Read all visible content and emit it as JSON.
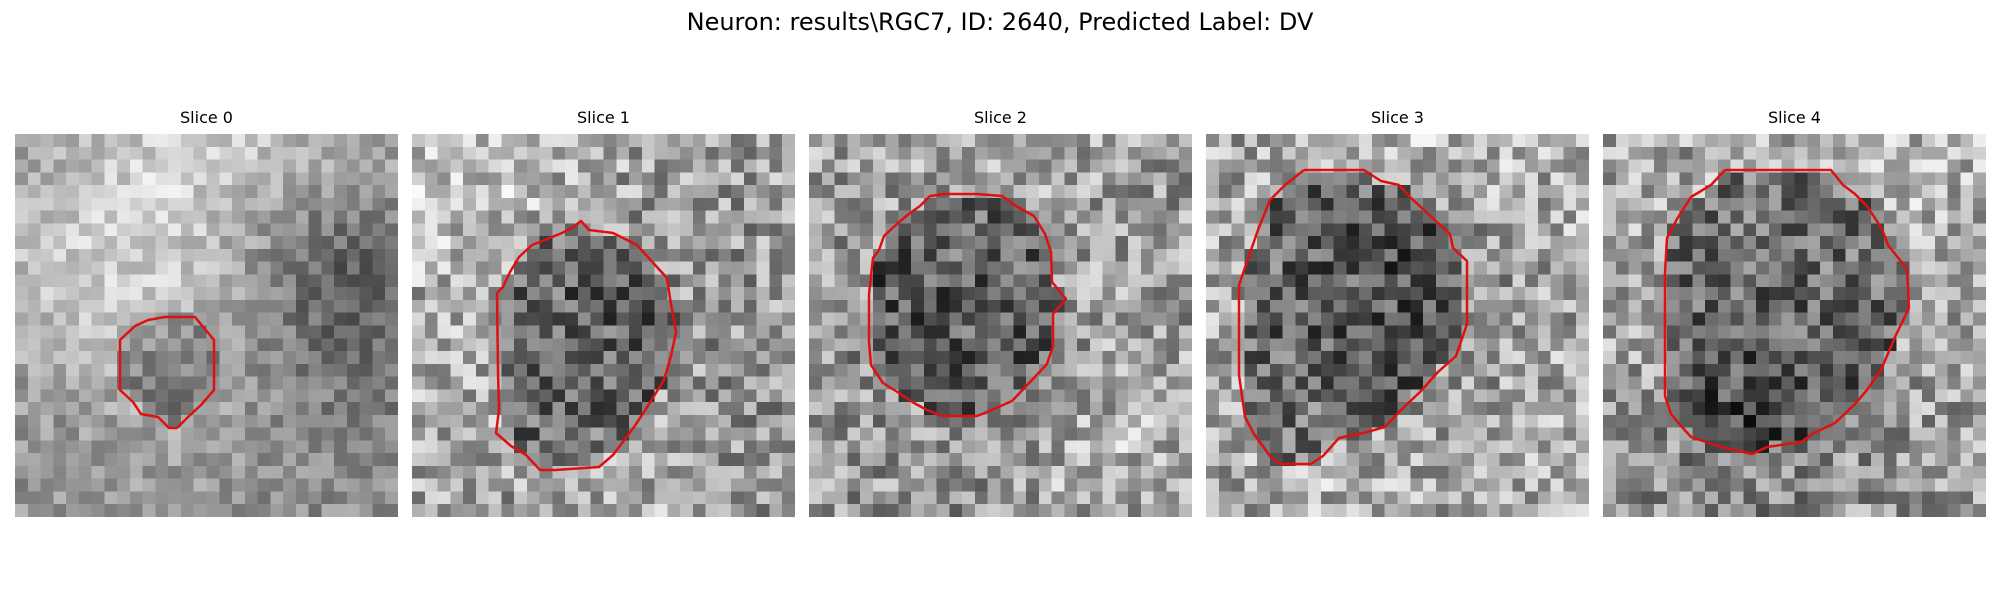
{
  "figure": {
    "title": "Neuron: results\\RGC7, ID: 2640, Predicted Label: DV",
    "outline_color": "#e01010"
  },
  "slices": [
    {
      "title": "Slice 0",
      "cell_size": "small",
      "background": "light-mottled"
    },
    {
      "title": "Slice 1",
      "cell_size": "large",
      "background": "speckled"
    },
    {
      "title": "Slice 2",
      "cell_size": "large",
      "background": "speckled"
    },
    {
      "title": "Slice 3",
      "cell_size": "large",
      "background": "speckled"
    },
    {
      "title": "Slice 4",
      "cell_size": "large",
      "background": "speckled"
    }
  ]
}
